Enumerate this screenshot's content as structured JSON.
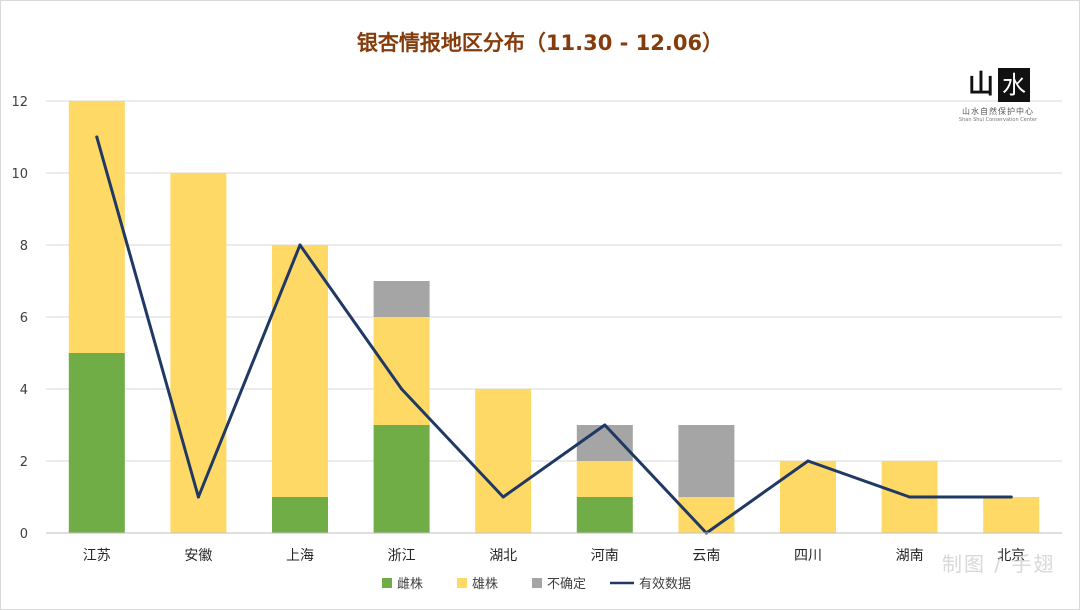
{
  "colors": {
    "female": "#70AD47",
    "male": "#FFD966",
    "uncertain": "#A5A5A5",
    "valid_line": "#203864",
    "title": "#843C0C",
    "grid": "#D9D9D9"
  },
  "logo": {
    "left_char": "山",
    "right_char": "水",
    "subtitle": "山水自然保护中心",
    "subtitle_en": "Shan Shui Conservation Center"
  },
  "watermark": "制图 / 手翅",
  "chart_data": {
    "type": "bar",
    "stacked": true,
    "title": "银杏情报地区分布（11.30 - 12.06）",
    "categories": [
      "江苏",
      "安徽",
      "上海",
      "浙江",
      "湖北",
      "河南",
      "云南",
      "四川",
      "湖南",
      "北京"
    ],
    "series": [
      {
        "name": "雌株",
        "kind": "bar",
        "color_key": "female",
        "values": [
          5,
          0,
          1,
          3,
          0,
          1,
          0,
          0,
          0,
          0
        ]
      },
      {
        "name": "雄株",
        "kind": "bar",
        "color_key": "male",
        "values": [
          7,
          10,
          7,
          3,
          4,
          1,
          1,
          2,
          2,
          1
        ]
      },
      {
        "name": "不确定",
        "kind": "bar",
        "color_key": "uncertain",
        "values": [
          0,
          0,
          0,
          1,
          0,
          1,
          2,
          0,
          0,
          0
        ]
      },
      {
        "name": "有效数据",
        "kind": "line",
        "color_key": "valid_line",
        "values": [
          11,
          1,
          8,
          4,
          1,
          3,
          0,
          2,
          1,
          1
        ]
      }
    ],
    "yticks": [
      "0",
      "2",
      "4",
      "6",
      "8",
      "10",
      "12"
    ],
    "ylim": [
      0,
      12
    ],
    "grid": true,
    "legend_position": "bottom",
    "xlabel": "",
    "ylabel": ""
  }
}
